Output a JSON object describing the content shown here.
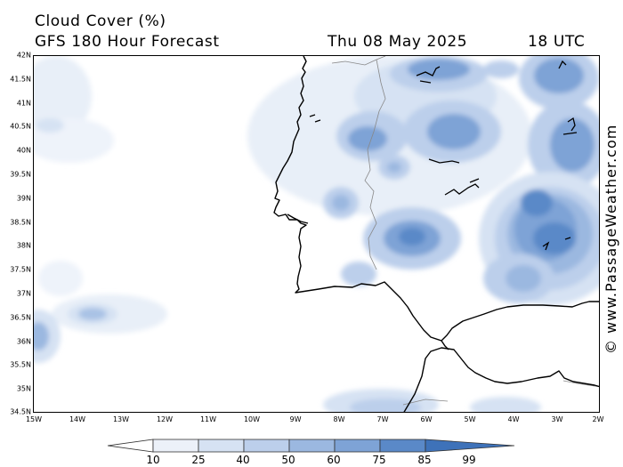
{
  "header": {
    "title": "Cloud Cover (%)",
    "subtitle": "GFS 180 Hour Forecast",
    "date": "Thu 08 May 2025",
    "time": "18 UTC"
  },
  "credit": "© www.PassageWeather.com",
  "axes": {
    "lat_labels": [
      "42N",
      "41.5N",
      "41N",
      "40.5N",
      "40N",
      "39.5N",
      "39N",
      "38.5N",
      "38N",
      "37.5N",
      "37N",
      "36.5N",
      "36N",
      "35.5N",
      "35N",
      "34.5N"
    ],
    "lon_labels": [
      "15W",
      "14W",
      "13W",
      "12W",
      "11W",
      "10W",
      "9W",
      "8W",
      "7W",
      "6W",
      "5W",
      "4W",
      "3W",
      "2W"
    ]
  },
  "colorbar": {
    "labels": [
      "10",
      "25",
      "40",
      "50",
      "60",
      "75",
      "85",
      "99"
    ],
    "colors": [
      "#ffffff",
      "#ecf1f9",
      "#d6e2f3",
      "#bccfeb",
      "#9bb8e0",
      "#7ea3d6",
      "#5a89c8",
      "#3e72b9"
    ]
  },
  "colors": {
    "land_border": "#888888",
    "coast": "#000000"
  }
}
